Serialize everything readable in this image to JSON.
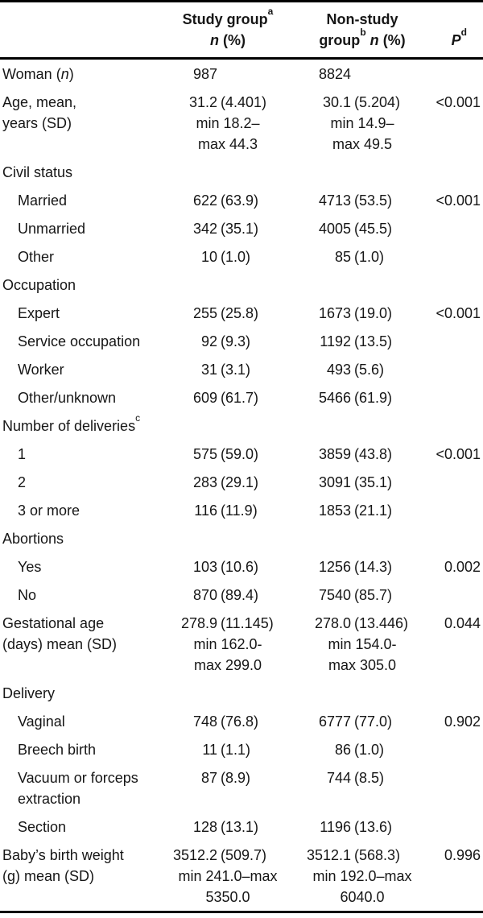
{
  "colors": {
    "text": "#161616",
    "rule": "#000000",
    "background": "#ffffff"
  },
  "header": {
    "study_group": {
      "title": "Study group",
      "sup": "a",
      "n_symbol": "n",
      "pct": "(%)"
    },
    "non_study_group": {
      "line1": "Non-study",
      "line2_word": "group",
      "sup": "b",
      "n_symbol": "n",
      "pct": "(%)"
    },
    "p_column": {
      "symbol": "P",
      "sup": "d"
    }
  },
  "rows": {
    "woman": {
      "label_prefix": "Woman (",
      "label_n": "n",
      "label_suffix": ")",
      "study_num": "987",
      "nonstudy_num": "8824"
    },
    "age": {
      "label": "Age, mean,\nyears (SD)",
      "study_num": "31.2",
      "study_paren": "(4.401)",
      "study_rest": "min 18.2–\nmax 44.3",
      "nonstudy_num": "30.1",
      "nonstudy_paren": "(5.204)",
      "nonstudy_rest": "min 14.9–\nmax 49.5",
      "p": "<0.001"
    },
    "civil_status": {
      "label": "Civil status"
    },
    "married": {
      "label": "Married",
      "study_num": "622",
      "study_paren": "(63.9)",
      "nonstudy_num": "4713",
      "nonstudy_paren": "(53.5)",
      "p": "<0.001"
    },
    "unmarried": {
      "label": "Unmarried",
      "study_num": "342",
      "study_paren": "(35.1)",
      "nonstudy_num": "4005",
      "nonstudy_paren": "(45.5)"
    },
    "other_civil": {
      "label": "Other",
      "study_num": "10",
      "study_paren": "(1.0)",
      "nonstudy_num": "85",
      "nonstudy_paren": "(1.0)"
    },
    "occupation": {
      "label": "Occupation"
    },
    "expert": {
      "label": "Expert",
      "study_num": "255",
      "study_paren": "(25.8)",
      "nonstudy_num": "1673",
      "nonstudy_paren": "(19.0)",
      "p": "<0.001"
    },
    "service": {
      "label": "Service occupation",
      "study_num": "92",
      "study_paren": "(9.3)",
      "nonstudy_num": "1192",
      "nonstudy_paren": "(13.5)"
    },
    "worker": {
      "label": "Worker",
      "study_num": "31",
      "study_paren": "(3.1)",
      "nonstudy_num": "493",
      "nonstudy_paren": "(5.6)"
    },
    "other_unknown": {
      "label": "Other/unknown",
      "study_num": "609",
      "study_paren": "(61.7)",
      "nonstudy_num": "5466",
      "nonstudy_paren": "(61.9)"
    },
    "number_of_deliveries": {
      "label": "Number of deliveries",
      "sup": "c"
    },
    "deliveries_1": {
      "label": "1",
      "study_num": "575",
      "study_paren": "(59.0)",
      "nonstudy_num": "3859",
      "nonstudy_paren": "(43.8)",
      "p": "<0.001"
    },
    "deliveries_2": {
      "label": "2",
      "study_num": "283",
      "study_paren": "(29.1)",
      "nonstudy_num": "3091",
      "nonstudy_paren": "(35.1)"
    },
    "deliveries_3": {
      "label": "3 or more",
      "study_num": "116",
      "study_paren": "(11.9)",
      "nonstudy_num": "1853",
      "nonstudy_paren": "(21.1)"
    },
    "abortions": {
      "label": "Abortions"
    },
    "abortions_yes": {
      "label": "Yes",
      "study_num": "103",
      "study_paren": "(10.6)",
      "nonstudy_num": "1256",
      "nonstudy_paren": "(14.3)",
      "p": "0.002"
    },
    "abortions_no": {
      "label": "No",
      "study_num": "870",
      "study_paren": "(89.4)",
      "nonstudy_num": "7540",
      "nonstudy_paren": "(85.7)"
    },
    "gestational": {
      "label": "Gestational age\n(days) mean (SD)",
      "study_num": "278.9",
      "study_paren": "(11.145)",
      "study_rest": "min 162.0-\nmax 299.0",
      "nonstudy_num": "278.0",
      "nonstudy_paren": "(13.446)",
      "nonstudy_rest": "min 154.0-\nmax 305.0",
      "p": "0.044"
    },
    "delivery": {
      "label": "Delivery"
    },
    "vaginal": {
      "label": "Vaginal",
      "study_num": "748",
      "study_paren": "(76.8)",
      "nonstudy_num": "6777",
      "nonstudy_paren": "(77.0)",
      "p": "0.902"
    },
    "breech": {
      "label": "Breech birth",
      "study_num": "11",
      "study_paren": "(1.1)",
      "nonstudy_num": "86",
      "nonstudy_paren": "(1.0)"
    },
    "vacuum": {
      "label": "Vacuum or forceps\nextraction",
      "study_num": "87",
      "study_paren": "(8.9)",
      "nonstudy_num": "744",
      "nonstudy_paren": "(8.5)"
    },
    "section": {
      "label": "Section",
      "study_num": "128",
      "study_paren": "(13.1)",
      "nonstudy_num": "1196",
      "nonstudy_paren": "(13.6)"
    },
    "baby": {
      "label": "Baby’s birth weight\n(g) mean (SD)",
      "study_num": "3512.2",
      "study_paren": "(509.7)",
      "study_rest": "min 241.0–max\n5350.0",
      "nonstudy_num": "3512.1",
      "nonstudy_paren": "(568.3)",
      "nonstudy_rest": "min 192.0–max\n6040.0",
      "p": "0.996"
    }
  }
}
